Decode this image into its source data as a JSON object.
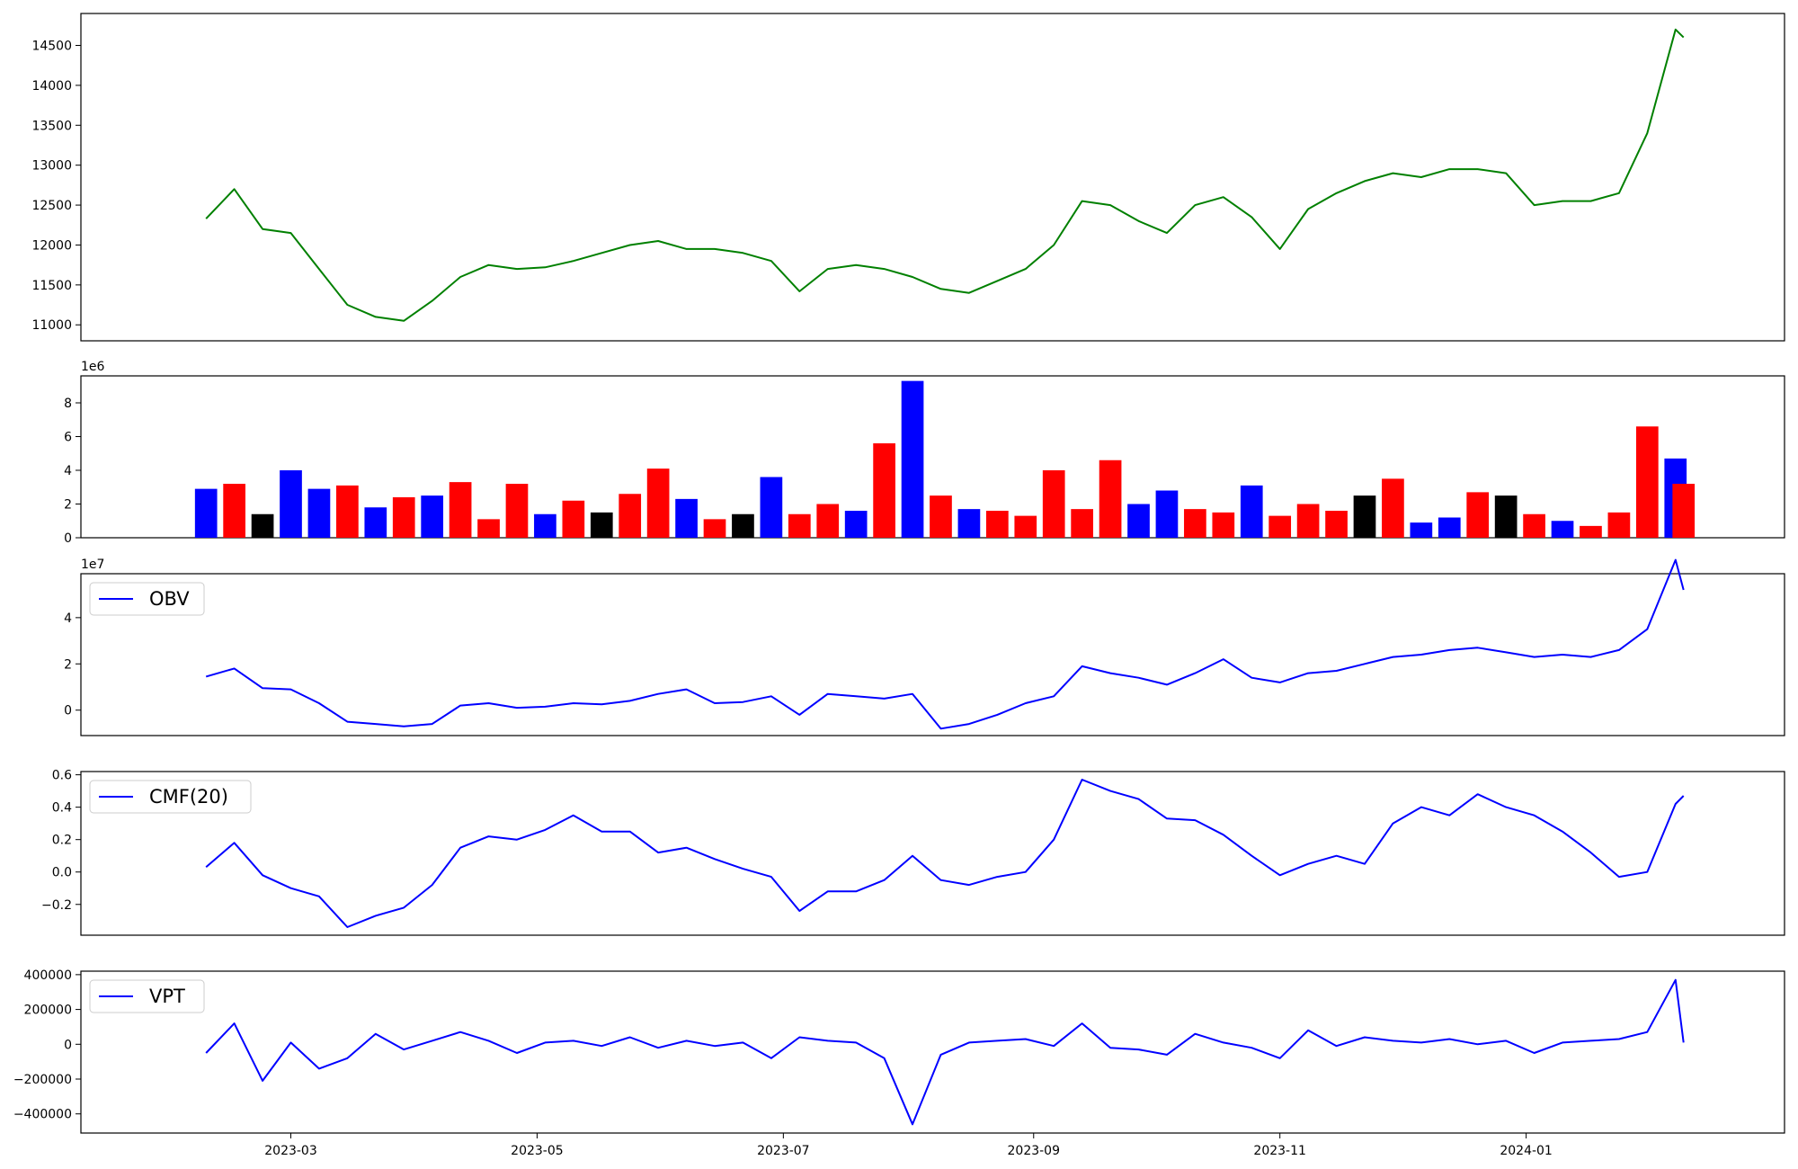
{
  "chart_data": [
    {
      "type": "line",
      "title": "",
      "xlabel": "",
      "ylabel": "",
      "ylim": [
        10800,
        14900
      ],
      "yticks": [
        11000,
        11500,
        12000,
        12500,
        13000,
        13500,
        14000,
        14500
      ],
      "grid": false,
      "color": "#008000",
      "x": [
        "2023-02-08",
        "2023-02-15",
        "2023-02-22",
        "2023-03-01",
        "2023-03-08",
        "2023-03-15",
        "2023-03-22",
        "2023-03-29",
        "2023-04-05",
        "2023-04-12",
        "2023-04-19",
        "2023-04-26",
        "2023-05-03",
        "2023-05-10",
        "2023-05-17",
        "2023-05-24",
        "2023-05-31",
        "2023-06-07",
        "2023-06-14",
        "2023-06-21",
        "2023-06-28",
        "2023-07-05",
        "2023-07-12",
        "2023-07-19",
        "2023-07-26",
        "2023-08-02",
        "2023-08-09",
        "2023-08-16",
        "2023-08-23",
        "2023-08-30",
        "2023-09-06",
        "2023-09-13",
        "2023-09-20",
        "2023-09-27",
        "2023-10-04",
        "2023-10-11",
        "2023-10-18",
        "2023-10-25",
        "2023-11-01",
        "2023-11-08",
        "2023-11-15",
        "2023-11-22",
        "2023-11-29",
        "2023-12-06",
        "2023-12-13",
        "2023-12-20",
        "2023-12-27",
        "2024-01-03",
        "2024-01-10",
        "2024-01-17",
        "2024-01-24",
        "2024-01-31",
        "2024-02-07",
        "2024-02-09"
      ],
      "y": [
        12330,
        12700,
        12200,
        12150,
        11700,
        11250,
        11100,
        11050,
        11300,
        11600,
        11750,
        11700,
        11720,
        11800,
        11900,
        12000,
        12050,
        11950,
        11950,
        11900,
        11800,
        11420,
        11700,
        11750,
        11700,
        11600,
        11450,
        11400,
        11550,
        11700,
        12000,
        12550,
        12500,
        12300,
        12150,
        12500,
        12600,
        12350,
        11950,
        12450,
        12650,
        12800,
        12900,
        12850,
        12950,
        12950,
        12900,
        12500,
        12550,
        12550,
        12650,
        13400,
        14700,
        14600
      ]
    },
    {
      "type": "bar",
      "title": "",
      "xlabel": "",
      "ylabel": "",
      "y_offset_text": "1e6",
      "ylim": [
        0,
        9.6
      ],
      "yticks": [
        0,
        2,
        4,
        6,
        8
      ],
      "grid": false,
      "up_color": "#0000ff",
      "down_color": "#ff0000",
      "flat_color": "#000000",
      "categories": [
        "2023-02-08",
        "2023-02-15",
        "2023-02-22",
        "2023-03-01",
        "2023-03-08",
        "2023-03-15",
        "2023-03-22",
        "2023-03-29",
        "2023-04-05",
        "2023-04-12",
        "2023-04-19",
        "2023-04-26",
        "2023-05-03",
        "2023-05-10",
        "2023-05-17",
        "2023-05-24",
        "2023-05-31",
        "2023-06-07",
        "2023-06-14",
        "2023-06-21",
        "2023-06-28",
        "2023-07-05",
        "2023-07-12",
        "2023-07-19",
        "2023-07-26",
        "2023-08-02",
        "2023-08-09",
        "2023-08-16",
        "2023-08-23",
        "2023-08-30",
        "2023-09-06",
        "2023-09-13",
        "2023-09-20",
        "2023-09-27",
        "2023-10-04",
        "2023-10-11",
        "2023-10-18",
        "2023-10-25",
        "2023-11-01",
        "2023-11-08",
        "2023-11-15",
        "2023-11-22",
        "2023-11-29",
        "2023-12-06",
        "2023-12-13",
        "2023-12-20",
        "2023-12-27",
        "2024-01-03",
        "2024-01-10",
        "2024-01-17",
        "2024-01-24",
        "2024-01-31",
        "2024-02-07",
        "2024-02-09"
      ],
      "values": [
        2.9,
        3.2,
        1.4,
        4.0,
        2.9,
        3.1,
        1.8,
        2.4,
        2.5,
        3.3,
        1.1,
        3.2,
        1.4,
        2.2,
        1.5,
        2.6,
        4.1,
        2.3,
        1.1,
        1.4,
        3.6,
        1.4,
        2.0,
        1.6,
        5.6,
        9.3,
        2.5,
        1.7,
        1.6,
        1.3,
        4.0,
        1.7,
        4.6,
        2.0,
        2.8,
        1.7,
        1.5,
        3.1,
        1.3,
        2.0,
        1.6,
        2.5,
        3.5,
        0.9,
        1.2,
        2.7,
        2.5,
        1.4,
        1.0,
        0.7,
        1.5,
        6.6,
        4.7,
        3.2
      ],
      "directions": [
        "up",
        "down",
        "flat",
        "up",
        "up",
        "down",
        "up",
        "down",
        "up",
        "down",
        "down",
        "down",
        "up",
        "down",
        "flat",
        "down",
        "down",
        "up",
        "down",
        "flat",
        "up",
        "down",
        "down",
        "up",
        "down",
        "up",
        "down",
        "up",
        "down",
        "down",
        "down",
        "down",
        "down",
        "up",
        "up",
        "down",
        "down",
        "up",
        "down",
        "down",
        "down",
        "flat",
        "down",
        "up",
        "up",
        "down",
        "flat",
        "down",
        "up",
        "down",
        "down",
        "down",
        "up",
        "down"
      ]
    },
    {
      "type": "line",
      "title": "",
      "xlabel": "",
      "ylabel": "",
      "y_offset_text": "1e7",
      "ylim": [
        -1.1,
        5.9
      ],
      "yticks": [
        0,
        2,
        4
      ],
      "grid": false,
      "legend": "upper left",
      "series": [
        {
          "name": "OBV",
          "color": "#0000ff",
          "x": [
            "2023-02-08",
            "2023-02-15",
            "2023-02-22",
            "2023-03-01",
            "2023-03-08",
            "2023-03-15",
            "2023-03-22",
            "2023-03-29",
            "2023-04-05",
            "2023-04-12",
            "2023-04-19",
            "2023-04-26",
            "2023-05-03",
            "2023-05-10",
            "2023-05-17",
            "2023-05-24",
            "2023-05-31",
            "2023-06-07",
            "2023-06-14",
            "2023-06-21",
            "2023-06-28",
            "2023-07-05",
            "2023-07-12",
            "2023-07-19",
            "2023-07-26",
            "2023-08-02",
            "2023-08-09",
            "2023-08-16",
            "2023-08-23",
            "2023-08-30",
            "2023-09-06",
            "2023-09-13",
            "2023-09-20",
            "2023-09-27",
            "2023-10-04",
            "2023-10-11",
            "2023-10-18",
            "2023-10-25",
            "2023-11-01",
            "2023-11-08",
            "2023-11-15",
            "2023-11-22",
            "2023-11-29",
            "2023-12-06",
            "2023-12-13",
            "2023-12-20",
            "2023-12-27",
            "2024-01-03",
            "2024-01-10",
            "2024-01-17",
            "2024-01-24",
            "2024-01-31",
            "2024-02-07",
            "2024-02-09"
          ],
          "y": [
            1.45,
            1.8,
            0.95,
            0.9,
            0.3,
            -0.5,
            -0.6,
            -0.7,
            -0.6,
            0.2,
            0.3,
            0.1,
            0.15,
            0.3,
            0.25,
            0.4,
            0.7,
            0.9,
            0.3,
            0.35,
            0.6,
            -0.2,
            0.7,
            0.6,
            0.5,
            0.7,
            -0.8,
            -0.6,
            -0.2,
            0.3,
            0.6,
            1.9,
            1.6,
            1.4,
            1.1,
            1.6,
            2.2,
            1.4,
            1.2,
            1.6,
            1.7,
            2.0,
            2.3,
            2.4,
            2.6,
            2.7,
            2.5,
            2.3,
            2.4,
            2.3,
            2.6,
            3.5,
            6.5,
            5.2
          ]
        }
      ]
    },
    {
      "type": "line",
      "title": "",
      "xlabel": "",
      "ylabel": "",
      "ylim": [
        -0.39,
        0.62
      ],
      "yticks": [
        -0.2,
        0.0,
        0.2,
        0.4,
        0.6
      ],
      "grid": false,
      "legend": "upper left",
      "series": [
        {
          "name": "CMF(20)",
          "color": "#0000ff",
          "x": [
            "2023-02-08",
            "2023-02-15",
            "2023-02-22",
            "2023-03-01",
            "2023-03-08",
            "2023-03-15",
            "2023-03-22",
            "2023-03-29",
            "2023-04-05",
            "2023-04-12",
            "2023-04-19",
            "2023-04-26",
            "2023-05-03",
            "2023-05-10",
            "2023-05-17",
            "2023-05-24",
            "2023-05-31",
            "2023-06-07",
            "2023-06-14",
            "2023-06-21",
            "2023-06-28",
            "2023-07-05",
            "2023-07-12",
            "2023-07-19",
            "2023-07-26",
            "2023-08-02",
            "2023-08-09",
            "2023-08-16",
            "2023-08-23",
            "2023-08-30",
            "2023-09-06",
            "2023-09-13",
            "2023-09-20",
            "2023-09-27",
            "2023-10-04",
            "2023-10-11",
            "2023-10-18",
            "2023-10-25",
            "2023-11-01",
            "2023-11-08",
            "2023-11-15",
            "2023-11-22",
            "2023-11-29",
            "2023-12-06",
            "2023-12-13",
            "2023-12-20",
            "2023-12-27",
            "2024-01-03",
            "2024-01-10",
            "2024-01-17",
            "2024-01-24",
            "2024-01-31",
            "2024-02-07",
            "2024-02-09"
          ],
          "y": [
            0.03,
            0.18,
            -0.02,
            -0.1,
            -0.15,
            -0.34,
            -0.27,
            -0.22,
            -0.08,
            0.15,
            0.22,
            0.2,
            0.26,
            0.35,
            0.25,
            0.25,
            0.12,
            0.15,
            0.08,
            0.02,
            -0.03,
            -0.24,
            -0.12,
            -0.12,
            -0.05,
            0.1,
            -0.05,
            -0.08,
            -0.03,
            0.0,
            0.2,
            0.57,
            0.5,
            0.45,
            0.33,
            0.32,
            0.23,
            0.1,
            -0.02,
            0.05,
            0.1,
            0.05,
            0.3,
            0.4,
            0.35,
            0.48,
            0.4,
            0.35,
            0.25,
            0.12,
            -0.03,
            0.0,
            0.42,
            0.47
          ]
        }
      ]
    },
    {
      "type": "line",
      "title": "",
      "xlabel": "",
      "ylabel": "",
      "ylim": [
        -510000,
        420000
      ],
      "yticks": [
        -400000,
        -200000,
        0,
        200000,
        400000
      ],
      "x_tick_labels": [
        "2023-03",
        "2023-05",
        "2023-07",
        "2023-09",
        "2023-11",
        "2024-01"
      ],
      "grid": false,
      "legend": "upper left",
      "series": [
        {
          "name": "VPT",
          "color": "#0000ff",
          "x": [
            "2023-02-08",
            "2023-02-15",
            "2023-02-22",
            "2023-03-01",
            "2023-03-08",
            "2023-03-15",
            "2023-03-22",
            "2023-03-29",
            "2023-04-05",
            "2023-04-12",
            "2023-04-19",
            "2023-04-26",
            "2023-05-03",
            "2023-05-10",
            "2023-05-17",
            "2023-05-24",
            "2023-05-31",
            "2023-06-07",
            "2023-06-14",
            "2023-06-21",
            "2023-06-28",
            "2023-07-05",
            "2023-07-12",
            "2023-07-19",
            "2023-07-26",
            "2023-08-02",
            "2023-08-09",
            "2023-08-16",
            "2023-08-23",
            "2023-08-30",
            "2023-09-06",
            "2023-09-13",
            "2023-09-20",
            "2023-09-27",
            "2023-10-04",
            "2023-10-11",
            "2023-10-18",
            "2023-10-25",
            "2023-11-01",
            "2023-11-08",
            "2023-11-15",
            "2023-11-22",
            "2023-11-29",
            "2023-12-06",
            "2023-12-13",
            "2023-12-20",
            "2023-12-27",
            "2024-01-03",
            "2024-01-10",
            "2024-01-17",
            "2024-01-24",
            "2024-01-31",
            "2024-02-07",
            "2024-02-09"
          ],
          "y": [
            -50000,
            120000,
            -210000,
            10000,
            -140000,
            -80000,
            60000,
            -30000,
            20000,
            70000,
            20000,
            -50000,
            10000,
            20000,
            -10000,
            40000,
            -20000,
            20000,
            -10000,
            10000,
            -80000,
            40000,
            20000,
            10000,
            -80000,
            -460000,
            -60000,
            10000,
            20000,
            30000,
            -10000,
            120000,
            -20000,
            -30000,
            -60000,
            60000,
            10000,
            -20000,
            -80000,
            80000,
            -10000,
            40000,
            20000,
            10000,
            30000,
            0,
            20000,
            -50000,
            10000,
            20000,
            30000,
            70000,
            370000,
            10000
          ]
        }
      ]
    }
  ]
}
